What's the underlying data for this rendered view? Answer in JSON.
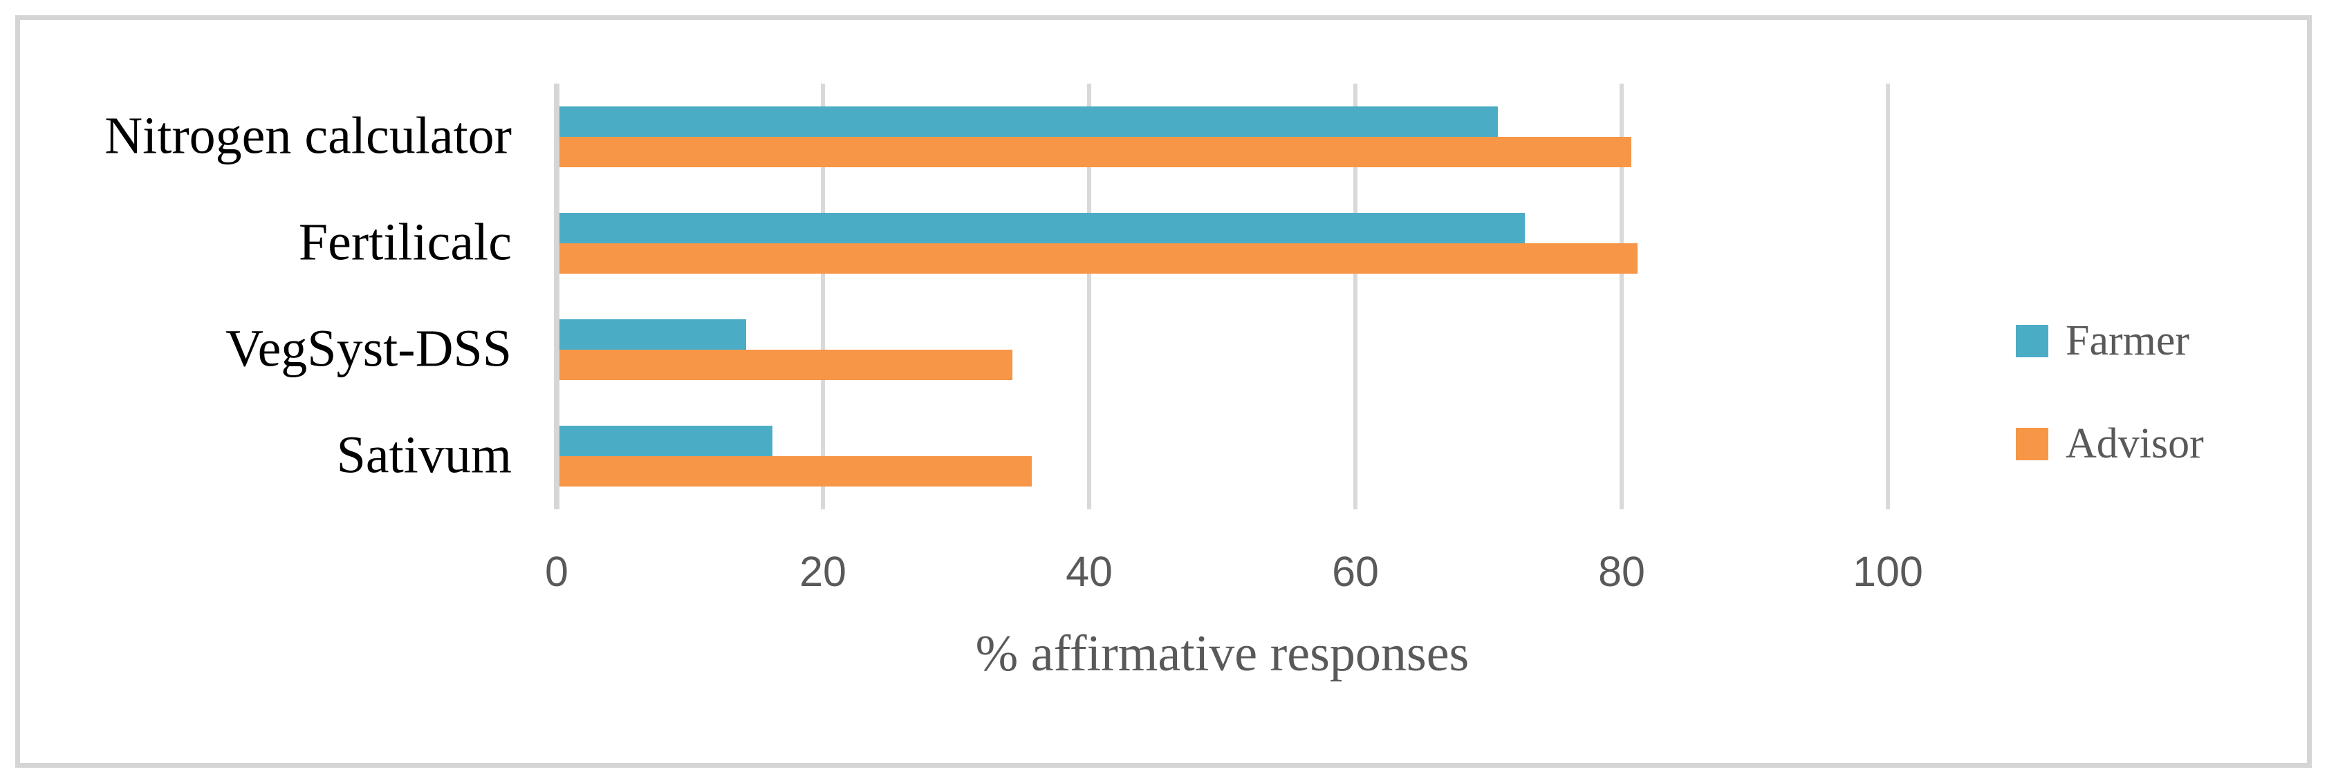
{
  "palette": {
    "background": "#FFFFFF",
    "border": "#D5D5D5",
    "gridline": "#D9D9D9",
    "axis_line": "#D6D6D6",
    "category_text": "#000000",
    "tick_text": "#595959",
    "muted_text": "#595959"
  },
  "chart_data": {
    "type": "bar",
    "orientation": "horizontal",
    "title": "",
    "categories": [
      "Nitrogen calculator",
      "Fertilicalc",
      "VegSyst-DSS",
      "Sativum"
    ],
    "series": [
      {
        "name": "Farmer",
        "color": "#4BACC6",
        "values": [
          70.5,
          72.5,
          14,
          16
        ]
      },
      {
        "name": "Advisor",
        "color": "#F79646",
        "values": [
          80.5,
          81,
          34,
          35.5
        ]
      }
    ],
    "xlabel": "% affirmative responses",
    "ylabel": "",
    "xlim": [
      0,
      100
    ],
    "xticks": [
      0,
      20,
      40,
      60,
      80,
      100
    ],
    "grid": "vertical-only",
    "legend_position": "right-middle"
  }
}
